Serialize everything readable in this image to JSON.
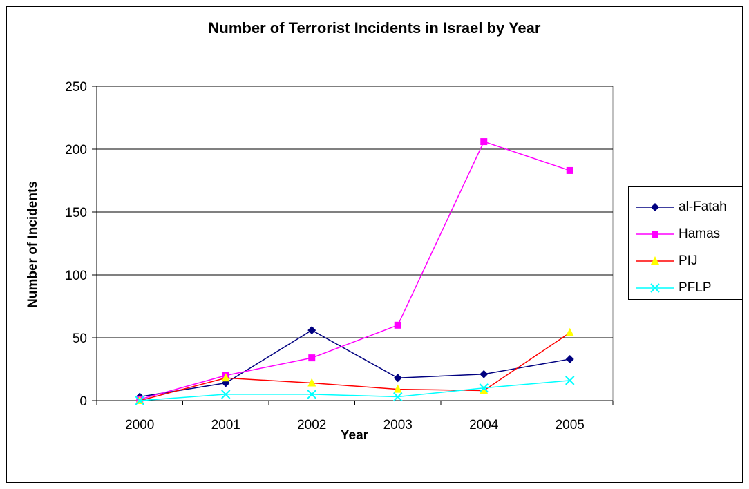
{
  "chart_data": {
    "type": "line",
    "title": "Number of Terrorist Incidents in Israel by Year",
    "xlabel": "Year",
    "ylabel": "Number of Incidents",
    "categories": [
      "2000",
      "2001",
      "2002",
      "2003",
      "2004",
      "2005"
    ],
    "ylim": [
      0,
      250
    ],
    "yticks": [
      0,
      50,
      100,
      150,
      200,
      250
    ],
    "grid": "horizontal",
    "legend_position": "right",
    "series": [
      {
        "name": "al-Fatah",
        "values": [
          3,
          14,
          56,
          18,
          21,
          33
        ],
        "color": "#000080",
        "marker": "diamond"
      },
      {
        "name": "Hamas",
        "values": [
          1,
          20,
          34,
          60,
          206,
          183
        ],
        "color": "#FF00FF",
        "marker": "square"
      },
      {
        "name": "PIJ",
        "values": [
          0,
          18,
          14,
          9,
          8,
          54
        ],
        "color": "#FF0000",
        "marker_color": "#FFFF00",
        "marker": "triangle"
      },
      {
        "name": "PFLP",
        "values": [
          0,
          5,
          5,
          3,
          10,
          16
        ],
        "color": "#00FFFF",
        "marker": "x"
      }
    ]
  }
}
